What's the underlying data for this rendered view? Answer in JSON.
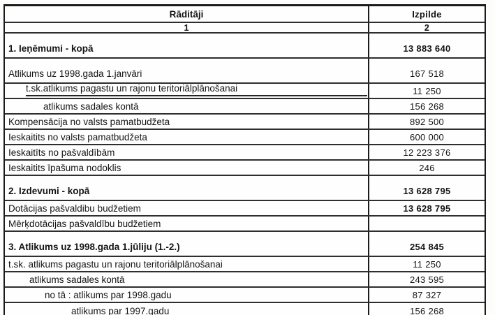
{
  "table": {
    "header": {
      "col1_label": "Rāditāji",
      "col2_label": "Izpilde",
      "col1_num": "1",
      "col2_num": "2"
    },
    "rows": [
      {
        "label": "1. Ieņēmumi - kopā",
        "value": "13 883 640",
        "bold": true,
        "value_bold": true,
        "tall": true,
        "indent": 0
      },
      {
        "label": "Atlikums uz 1998.gada 1.janvāri",
        "value": "167 518",
        "tall": true,
        "indent": 0
      },
      {
        "label": "t.sk.atlikums pagastu un rajonu teritoriālplānošanai",
        "value": "11 250",
        "indent": 25,
        "underline": true
      },
      {
        "label": "atlikums sadales kontā",
        "value": "156 268",
        "indent": 50
      },
      {
        "label": "Kompensācija no valsts pamatbudžeta",
        "value": "892 500",
        "indent": 0
      },
      {
        "label": "Ieskaitits no valsts pamatbudžeta",
        "value": "600 000",
        "indent": 0
      },
      {
        "label": "Ieskaitīts no pašvaldībām",
        "value": "12 223 376",
        "indent": 0
      },
      {
        "label": "Ieskaitits īpašuma nodoklis",
        "value": "246",
        "indent": 0
      },
      {
        "label": "2. Izdevumi - kopā",
        "value": "13 628 795",
        "bold": true,
        "value_bold": true,
        "tall": true,
        "indent": 0
      },
      {
        "label": "Dotācijas pašvaldibu budžetiem",
        "value": "13 628 795",
        "value_bold": true,
        "indent": 0
      },
      {
        "label": "Mērķdotācijas pašvaldību budžetiem",
        "value": "",
        "indent": 0
      },
      {
        "label": "3. Atlikums uz 1998.gada 1.jūliju (1.-2.)",
        "value": "254 845",
        "bold": true,
        "value_bold": true,
        "tall": true,
        "indent": 0
      },
      {
        "label": "t.sk. atlikums pagastu un rajonu teritoriālplānošanai",
        "value": "11 250",
        "indent": 0
      },
      {
        "label": "atlikums sadales kontā",
        "value": "243 595",
        "indent": 30
      },
      {
        "label": "no tā : atlikums par 1998.gadu",
        "value": "87 327",
        "indent": 52
      },
      {
        "label": "atlikums par 1997.gadu",
        "value": "156 268",
        "indent": 90
      }
    ]
  }
}
